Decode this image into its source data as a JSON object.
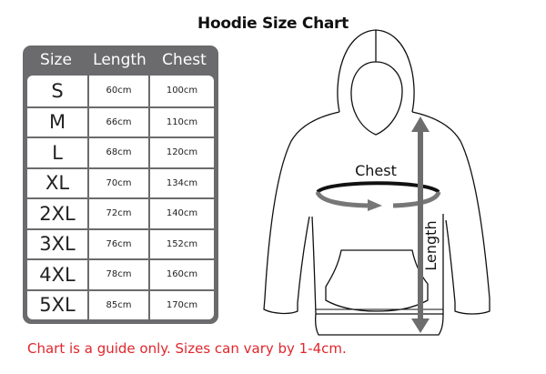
{
  "title": "Hoodie Size Chart",
  "table": {
    "headers": [
      "Size",
      "Length",
      "Chest"
    ],
    "rows": [
      [
        "S",
        "60cm",
        "100cm"
      ],
      [
        "M",
        "66cm",
        "110cm"
      ],
      [
        "L",
        "68cm",
        "120cm"
      ],
      [
        "XL",
        "70cm",
        "134cm"
      ],
      [
        "2XL",
        "72cm",
        "140cm"
      ],
      [
        "3XL",
        "76cm",
        "152cm"
      ],
      [
        "4XL",
        "78cm",
        "160cm"
      ],
      [
        "5XL",
        "85cm",
        "170cm"
      ]
    ]
  },
  "diagram": {
    "chest_label": "Chest",
    "length_label": "Length",
    "arrow_color": "#6d6d6d"
  },
  "note": "Chart is a guide only. Sizes can vary by 1-4cm.",
  "colors": {
    "table_frame": "#6b6b6d",
    "note": "#e0262c"
  }
}
